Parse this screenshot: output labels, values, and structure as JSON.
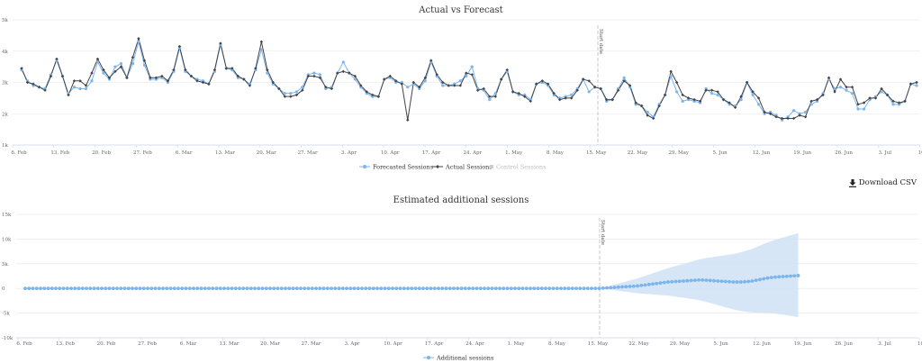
{
  "top_chart": {
    "title": "Actual vs Forecast",
    "y_ticks": [
      "1k",
      "2k",
      "3k",
      "4k",
      "5k"
    ],
    "x_ticks": [
      "6. Feb",
      "13. Feb",
      "20. Feb",
      "27. Feb",
      "6. Mar",
      "13. Mar",
      "20. Mar",
      "27. Mar",
      "3. Apr",
      "10. Apr",
      "17. Apr",
      "24. Apr",
      "1. May",
      "8. May",
      "15. May",
      "22. May",
      "29. May",
      "5. Jun",
      "12. Jun",
      "19. Jun",
      "26. Jun",
      "3. Jul",
      "10. Jul"
    ],
    "marker_label": "Start date",
    "legend": {
      "forecast": "Forecasted Sessions",
      "actual": "Actual Sessions",
      "control": "Control Sessions"
    },
    "colors": {
      "forecast": "#7cb5ec",
      "actual": "#434348",
      "control": "#cccccc"
    }
  },
  "download_label": "Download CSV",
  "bottom_chart": {
    "title": "Estimated additional sessions",
    "y_ticks": [
      "-10k",
      "-5k",
      "0",
      "5k",
      "10k",
      "15k"
    ],
    "x_ticks": [
      "6. Feb",
      "13. Feb",
      "20. Feb",
      "27. Feb",
      "6. Mar",
      "13. Mar",
      "20. Mar",
      "27. Mar",
      "3. Apr",
      "10. Apr",
      "17. Apr",
      "24. Apr",
      "1. May",
      "8. May",
      "15. May",
      "22. May",
      "29. May",
      "5. Jun",
      "12. Jun",
      "19. Jun",
      "26. Jun",
      "3. Jul",
      "10. Jul"
    ],
    "marker_label": "Start date",
    "legend": {
      "additional": "Additional sessions"
    },
    "colors": {
      "additional": "#7cb5ec",
      "band": "#cfe2f6"
    }
  },
  "chart_data": [
    {
      "type": "line",
      "title": "Actual vs Forecast",
      "x_start": "6. Feb",
      "x_end": "12. Jul",
      "start_date_marker": "18. May",
      "ylim": [
        1000,
        5000
      ],
      "legend_position": "bottom-center",
      "grid": true,
      "series": [
        {
          "name": "Actual Sessions",
          "values": [
            3450,
            3000,
            2950,
            2850,
            2750,
            3200,
            3750,
            3200,
            2600,
            3050,
            3050,
            2900,
            3300,
            3750,
            3400,
            3150,
            3350,
            3500,
            3150,
            3800,
            4400,
            3700,
            3150,
            3150,
            3200,
            3050,
            3400,
            4150,
            3400,
            3200,
            3050,
            3000,
            2950,
            3400,
            4250,
            3450,
            3450,
            3200,
            3100,
            2900,
            3450,
            4300,
            3400,
            3000,
            2800,
            2550,
            2550,
            2600,
            2750,
            3200,
            3200,
            3150,
            2850,
            2800,
            3300,
            3350,
            3300,
            3200,
            2900,
            2700,
            2600,
            2550,
            3100,
            3200,
            3050,
            2950,
            1800,
            3000,
            2850,
            3150,
            3700,
            3250,
            3000,
            2900,
            2900,
            2900,
            3300,
            3250,
            2750,
            2800,
            2550,
            2550,
            3100,
            3400,
            2700,
            2650,
            2550,
            2400,
            2950,
            3050,
            2950,
            2650,
            2450,
            2500,
            2500,
            2750,
            3100,
            3050,
            2850,
            2800,
            2450,
            2450,
            2750,
            3050,
            2900,
            2350,
            2250,
            1950,
            1850,
            2250,
            2600,
            3350,
            3000,
            2600,
            2500,
            2450,
            2400,
            2750,
            2750,
            2700,
            2450,
            2350,
            2200,
            2550,
            3000,
            2700,
            2500,
            2050,
            2000,
            1900,
            1850,
            1850,
            1850,
            1950,
            1900,
            2400,
            2450,
            2600,
            3150,
            2700,
            3100,
            2850,
            2850,
            2300,
            2350,
            2500,
            2500,
            2800,
            2600,
            2400,
            2350,
            2400,
            2950,
            3000
          ]
        },
        {
          "name": "Forecasted Sessions",
          "values": [
            3400,
            3050,
            2900,
            2850,
            2800,
            3250,
            3700,
            3200,
            2650,
            2850,
            2800,
            2800,
            3050,
            3650,
            3300,
            3100,
            3500,
            3600,
            3150,
            3600,
            4300,
            3550,
            3100,
            3100,
            3150,
            3000,
            3350,
            4100,
            3350,
            3200,
            3100,
            3050,
            2950,
            3350,
            4200,
            3450,
            3400,
            3150,
            3100,
            2950,
            3400,
            4050,
            3300,
            2950,
            2800,
            2650,
            2650,
            2700,
            2850,
            3250,
            3300,
            3250,
            2800,
            2850,
            3300,
            3650,
            3300,
            3100,
            2850,
            2650,
            2550,
            2550,
            3100,
            3150,
            3000,
            3000,
            2850,
            2950,
            2800,
            3050,
            3650,
            3200,
            2900,
            2900,
            2950,
            3050,
            3200,
            3500,
            2800,
            2750,
            2450,
            2650,
            3100,
            3350,
            2700,
            2600,
            2600,
            2450,
            2950,
            3000,
            2900,
            2600,
            2500,
            2550,
            2600,
            2800,
            3100,
            2700,
            2850,
            2800,
            2400,
            2450,
            2800,
            3150,
            2850,
            2300,
            2250,
            2050,
            1900,
            2300,
            2600,
            3200,
            2700,
            2400,
            2450,
            2400,
            2350,
            2800,
            2650,
            2600,
            2450,
            2300,
            2250,
            2450,
            3000,
            2600,
            2300,
            2000,
            2050,
            1950,
            1800,
            1900,
            2100,
            2000,
            2050,
            2300,
            2400,
            2650,
            3100,
            2800,
            2850,
            2750,
            2650,
            2150,
            2150,
            2450,
            2550,
            2700,
            2600,
            2300,
            2300,
            2400,
            2950,
            2900
          ]
        }
      ]
    },
    {
      "type": "area",
      "title": "Estimated additional sessions",
      "x_start": "6. Feb",
      "x_end": "12. Jul",
      "start_date_marker": "18. May",
      "ylim": [
        -10000,
        15000
      ],
      "legend_position": "bottom-center",
      "grid": true,
      "series": [
        {
          "name": "Additional sessions",
          "pre_marker_value": 0,
          "values_after_marker": [
            0,
            50,
            100,
            150,
            200,
            250,
            300,
            350,
            400,
            450,
            500,
            600,
            700,
            800,
            900,
            1000,
            1100,
            1200,
            1300,
            1350,
            1400,
            1450,
            1500,
            1550,
            1600,
            1650,
            1700,
            1700,
            1650,
            1600,
            1550,
            1500,
            1450,
            1400,
            1350,
            1300,
            1300,
            1300,
            1350,
            1400,
            1500,
            1650,
            1800,
            1950,
            2100,
            2200,
            2300,
            2350,
            2400,
            2450,
            2500,
            2550,
            2600
          ]
        }
      ],
      "confidence_band": {
        "upper_end": 11200,
        "lower_end": -5800
      }
    }
  ]
}
